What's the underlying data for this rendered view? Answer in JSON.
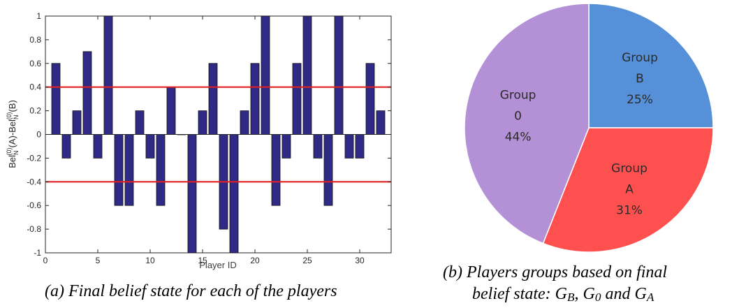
{
  "chart_data": [
    {
      "type": "bar",
      "x": [
        1,
        2,
        3,
        4,
        5,
        6,
        7,
        8,
        9,
        10,
        11,
        12,
        13,
        14,
        15,
        16,
        17,
        18,
        19,
        20,
        21,
        22,
        23,
        24,
        25,
        26,
        27,
        28,
        29,
        30,
        31,
        32
      ],
      "values": [
        0.6,
        -0.2,
        0.2,
        0.7,
        -0.2,
        1,
        -0.6,
        -0.6,
        0.2,
        -0.2,
        -0.6,
        0.4,
        0,
        -1,
        0.2,
        0.6,
        -0.8,
        -1,
        0.2,
        0.6,
        1,
        -0.6,
        -0.2,
        0.6,
        1,
        -0.2,
        -0.6,
        1,
        -0.2,
        -0.2,
        0.6,
        0.2
      ],
      "xlabel": "Player ID",
      "ylabel": "Bel_N^(0)(A)-Bel_N^(0)(B)",
      "xlim": [
        0,
        33
      ],
      "ylim": [
        -1,
        1
      ],
      "xticks": [
        0,
        5,
        10,
        15,
        20,
        25,
        30
      ],
      "yticks": [
        -1,
        -0.8,
        -0.6,
        -0.4,
        -0.2,
        0,
        0.2,
        0.4,
        0.6,
        0.8,
        1
      ],
      "thresholds": [
        0.4,
        -0.4
      ],
      "bar_color": "#2e2a86",
      "threshold_color": "#e02020",
      "grid": false
    },
    {
      "type": "pie",
      "slices": [
        {
          "label_line1": "Group",
          "label_line2": "B",
          "percent_text": "25%",
          "value": 25,
          "color": "#5590d9"
        },
        {
          "label_line1": "Group",
          "label_line2": "A",
          "percent_text": "31%",
          "value": 31,
          "color": "#ff5050"
        },
        {
          "label_line1": "Group",
          "label_line2": "0",
          "percent_text": "44%",
          "value": 44,
          "color": "#b490d6"
        }
      ]
    }
  ],
  "captions": {
    "a": "(a)  Final belief state for each of the players",
    "b_line1": "(b)  Players groups based on final",
    "b_line2_prefix": "belief state: G",
    "b_sub1": "B",
    "b_sep1": ", G",
    "b_sub2": "0",
    "b_sep2": " and G",
    "b_sub3": "A"
  }
}
